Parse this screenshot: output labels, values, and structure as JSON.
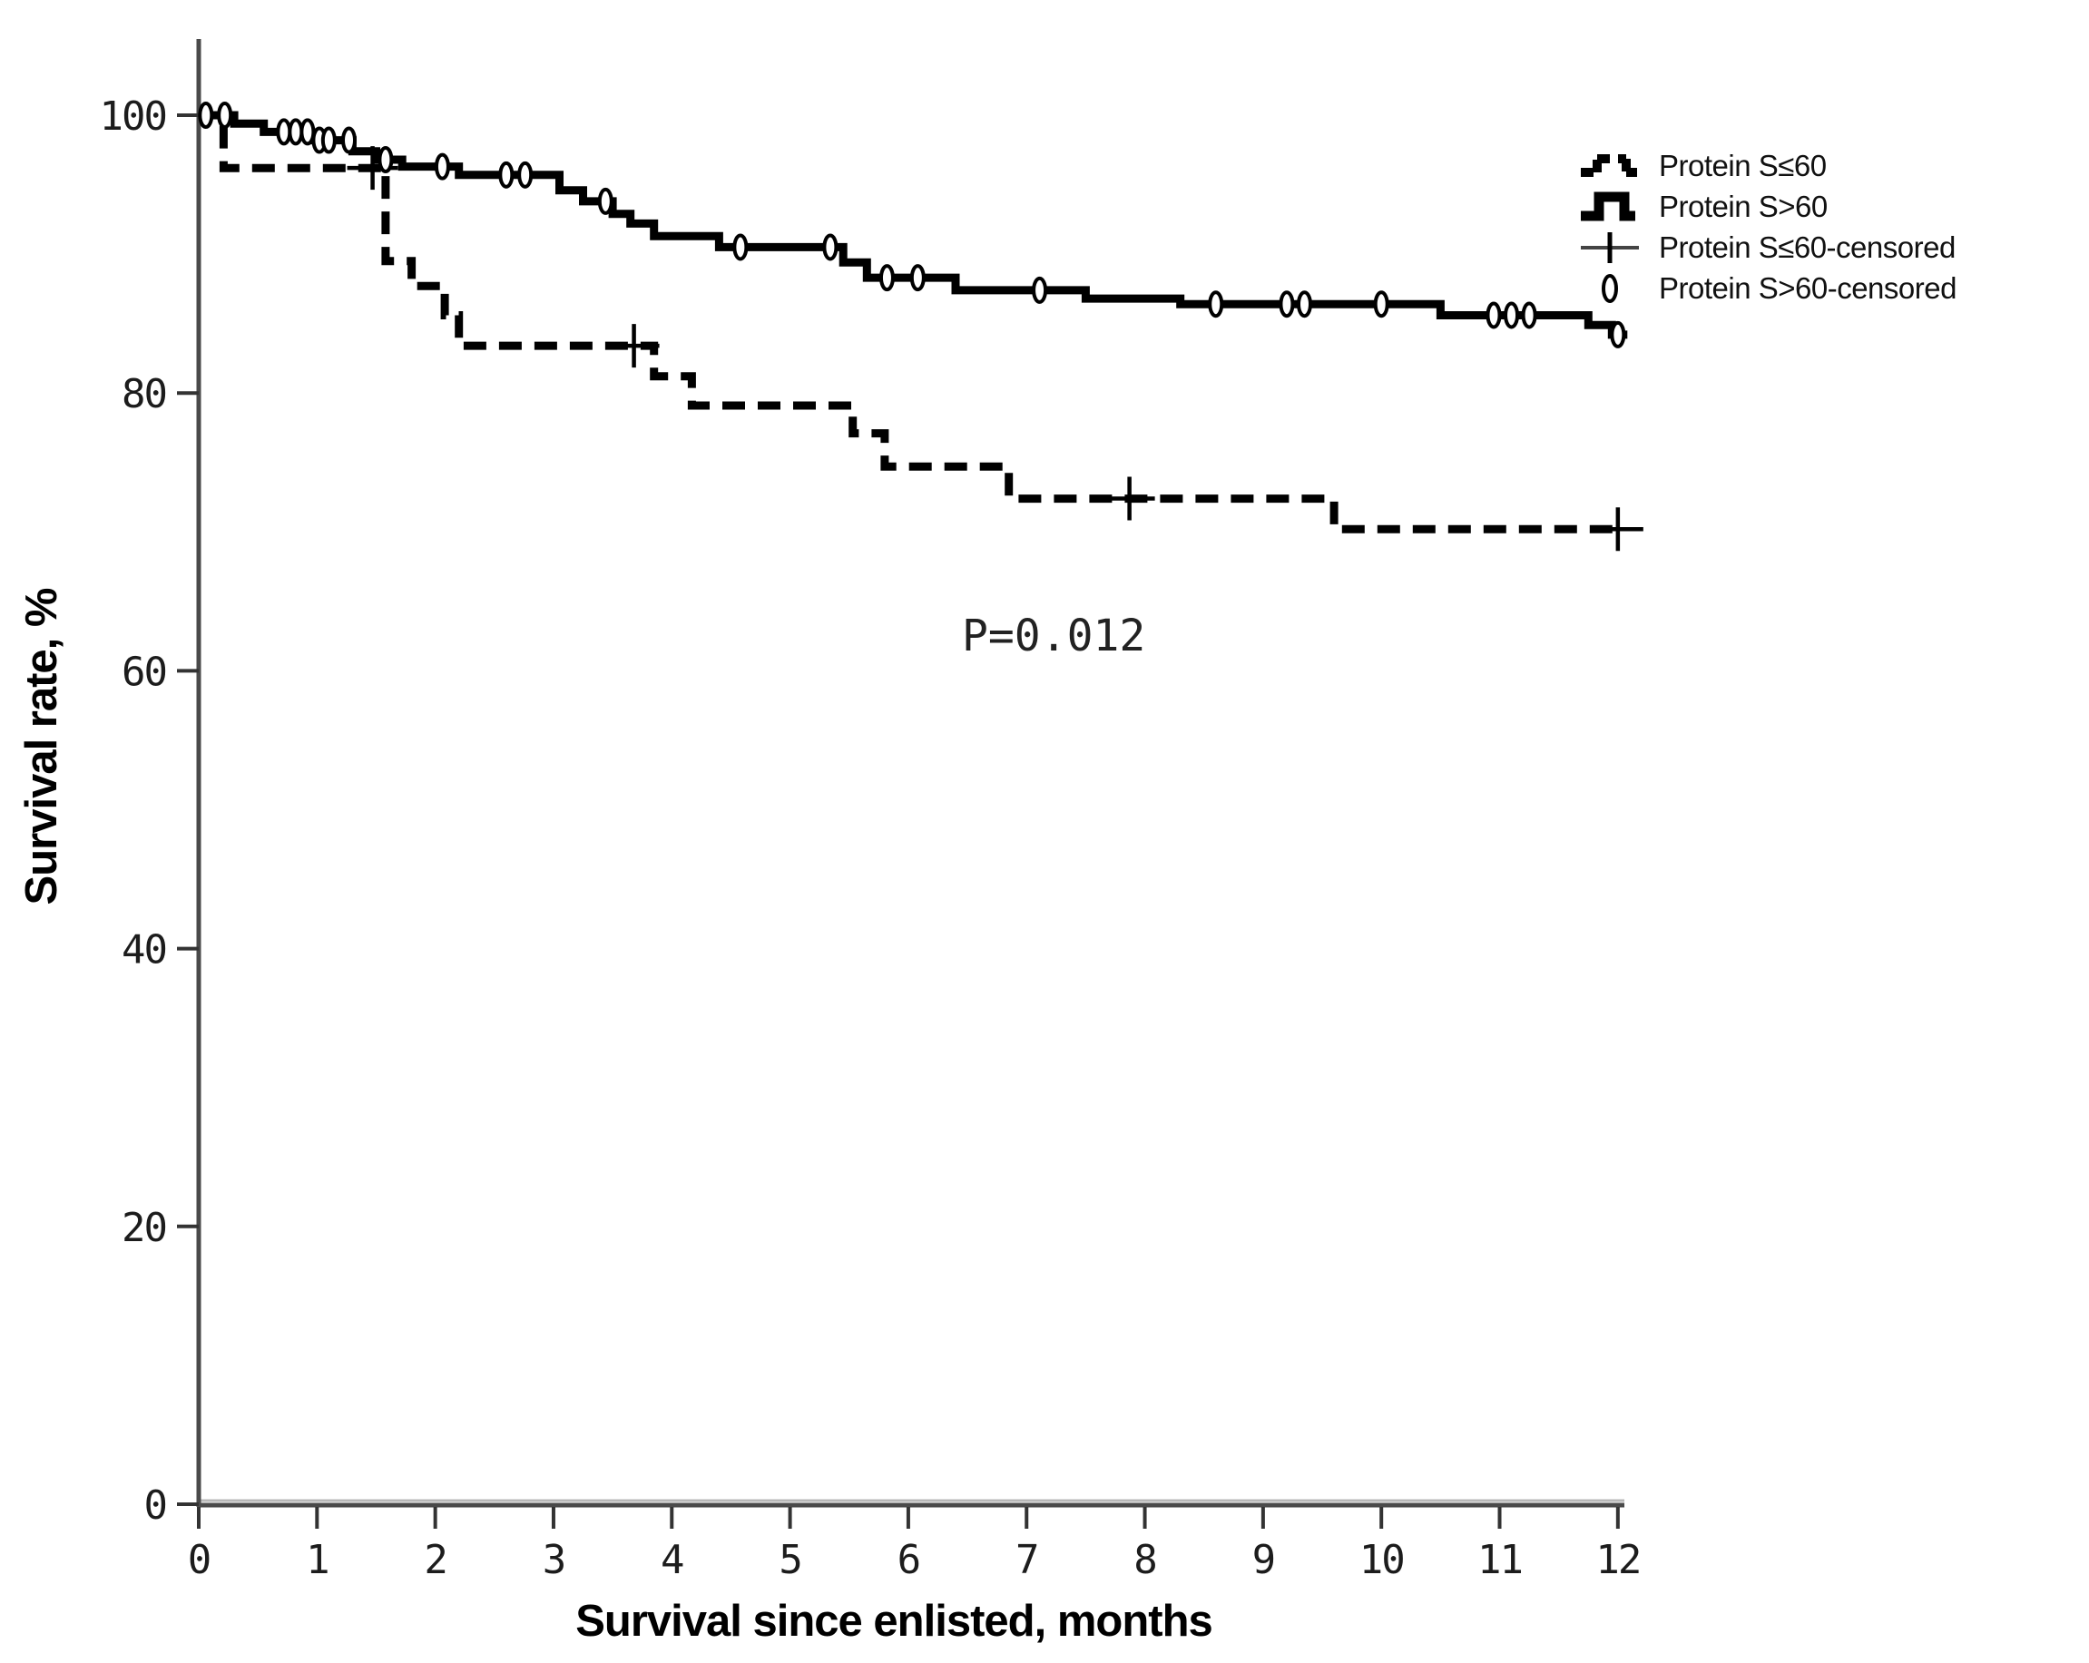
{
  "chart_data": {
    "type": "line",
    "subtype": "kaplan_meier_step_plot",
    "title": "",
    "xlabel": "Survival since enlisted, months",
    "ylabel": "Survival rate, %",
    "xlim": [
      0,
      12
    ],
    "ylim": [
      0,
      100
    ],
    "x_ticks": [
      0,
      1,
      2,
      3,
      4,
      5,
      6,
      7,
      8,
      9,
      10,
      11,
      12
    ],
    "y_ticks": [
      0,
      20,
      40,
      60,
      80,
      100
    ],
    "grid": false,
    "legend_position": "top-right",
    "annotation": {
      "text": "P=0.012"
    },
    "line_color": "#000000",
    "series": [
      {
        "name": "Protein S≤60",
        "line_style": "dashed",
        "color": "#000000",
        "censor_marker": "plus",
        "steps_month_pct": [
          [
            0,
            100
          ],
          [
            0.21,
            96.2
          ],
          [
            1.58,
            89.5
          ],
          [
            1.8,
            87.7
          ],
          [
            2.08,
            85.6
          ],
          [
            2.2,
            83.4
          ],
          [
            3.85,
            81.2
          ],
          [
            4.17,
            79.1
          ],
          [
            5.53,
            77.1
          ],
          [
            5.8,
            74.7
          ],
          [
            6.85,
            72.4
          ],
          [
            9.6,
            70.2
          ],
          [
            12.05,
            70.2
          ]
        ],
        "censored_months": [
          1.47,
          3.68,
          7.87,
          12.0
        ]
      },
      {
        "name": "Protein S>60",
        "line_style": "solid",
        "color": "#000000",
        "censor_marker": "diamond",
        "steps_month_pct": [
          [
            0,
            100
          ],
          [
            0.3,
            99.4
          ],
          [
            0.55,
            98.8
          ],
          [
            0.95,
            98.2
          ],
          [
            1.3,
            97.4
          ],
          [
            1.5,
            96.8
          ],
          [
            1.72,
            96.3
          ],
          [
            2.2,
            95.7
          ],
          [
            3.05,
            94.6
          ],
          [
            3.25,
            93.8
          ],
          [
            3.5,
            92.9
          ],
          [
            3.65,
            92.2
          ],
          [
            3.85,
            91.3
          ],
          [
            4.4,
            90.5
          ],
          [
            5.45,
            89.4
          ],
          [
            5.65,
            88.3
          ],
          [
            6.4,
            87.4
          ],
          [
            7.5,
            86.8
          ],
          [
            8.3,
            86.4
          ],
          [
            10.5,
            85.6
          ],
          [
            11.75,
            84.9
          ],
          [
            11.95,
            84.2
          ],
          [
            12.08,
            84.2
          ]
        ],
        "censored_months": [
          0.06,
          0.22,
          0.72,
          0.82,
          0.92,
          1.02,
          1.1,
          1.27,
          1.58,
          2.06,
          2.6,
          2.76,
          3.44,
          4.58,
          5.34,
          5.82,
          6.08,
          7.11,
          8.6,
          9.2,
          9.35,
          10.0,
          10.95,
          11.1,
          11.25,
          12.0
        ]
      }
    ],
    "legend": {
      "entries": [
        {
          "label": "Protein S≤60",
          "icon": "dashed-step-line"
        },
        {
          "label": "Protein S>60",
          "icon": "solid-step-line"
        },
        {
          "label": "Protein S≤60-censored",
          "icon": "plus-marker"
        },
        {
          "label": "Protein S>60-censored",
          "icon": "diamond-marker"
        }
      ]
    }
  }
}
